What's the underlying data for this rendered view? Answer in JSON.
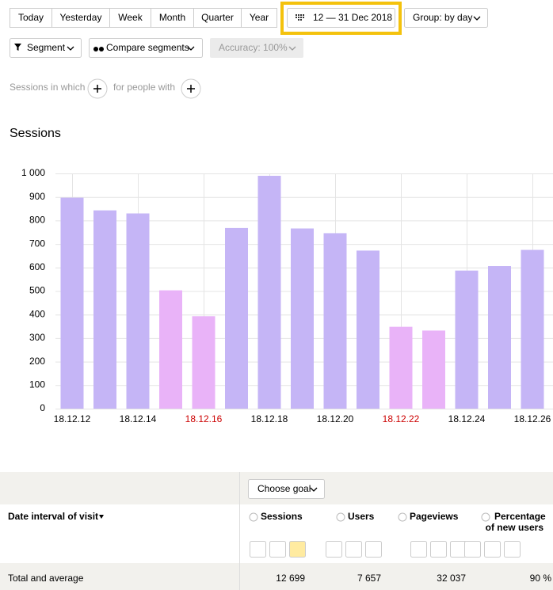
{
  "toolbar": {
    "periods": [
      "Today",
      "Yesterday",
      "Week",
      "Month",
      "Quarter",
      "Year"
    ],
    "date_range": "12 — 31 Dec 2018",
    "group": "Group: by day",
    "segment": "Segment",
    "compare": "Compare segments",
    "accuracy": "Accuracy: 100%"
  },
  "filters": {
    "sessions_in_which": "Sessions in which",
    "for_people_with": "for people with"
  },
  "chart_data": {
    "type": "bar",
    "title": "Sessions",
    "categories": [
      "18.12.12",
      null,
      "18.12.14",
      null,
      "18.12.16",
      null,
      "18.12.18",
      null,
      "18.12.20",
      null,
      "18.12.22",
      null,
      "18.12.24",
      null,
      "18.12.26"
    ],
    "label_colors": [
      "#000000",
      null,
      "#000000",
      null,
      "#cc0000",
      null,
      "#000000",
      null,
      "#000000",
      null,
      "#cc0000",
      null,
      "#000000",
      null,
      "#000000"
    ],
    "values": [
      897,
      843,
      830,
      503,
      393,
      768,
      990,
      766,
      746,
      672,
      348,
      332,
      587,
      606,
      675
    ],
    "colors": [
      "#c5b5f6",
      "#c5b5f6",
      "#c5b5f6",
      "#e9b3f8",
      "#e9b3f8",
      "#c5b5f6",
      "#c5b5f6",
      "#c5b5f6",
      "#c5b5f6",
      "#c5b5f6",
      "#e9b3f8",
      "#e9b3f8",
      "#c5b5f6",
      "#c5b5f6",
      "#c5b5f6"
    ],
    "ylim": [
      0,
      1000
    ],
    "yticks": [
      0,
      100,
      200,
      300,
      400,
      500,
      600,
      700,
      800,
      900,
      {
        "value": 1000,
        "label": "1 000"
      }
    ],
    "grid": true
  },
  "table": {
    "choose_goal": "Choose goal",
    "columns": [
      "Date interval of visit",
      "Sessions",
      "Users",
      "Pageviews",
      [
        "Percentage",
        "of new users"
      ]
    ],
    "total_row": [
      "Total and average",
      "12 699",
      "7 657",
      "32 037",
      "90 %"
    ]
  }
}
